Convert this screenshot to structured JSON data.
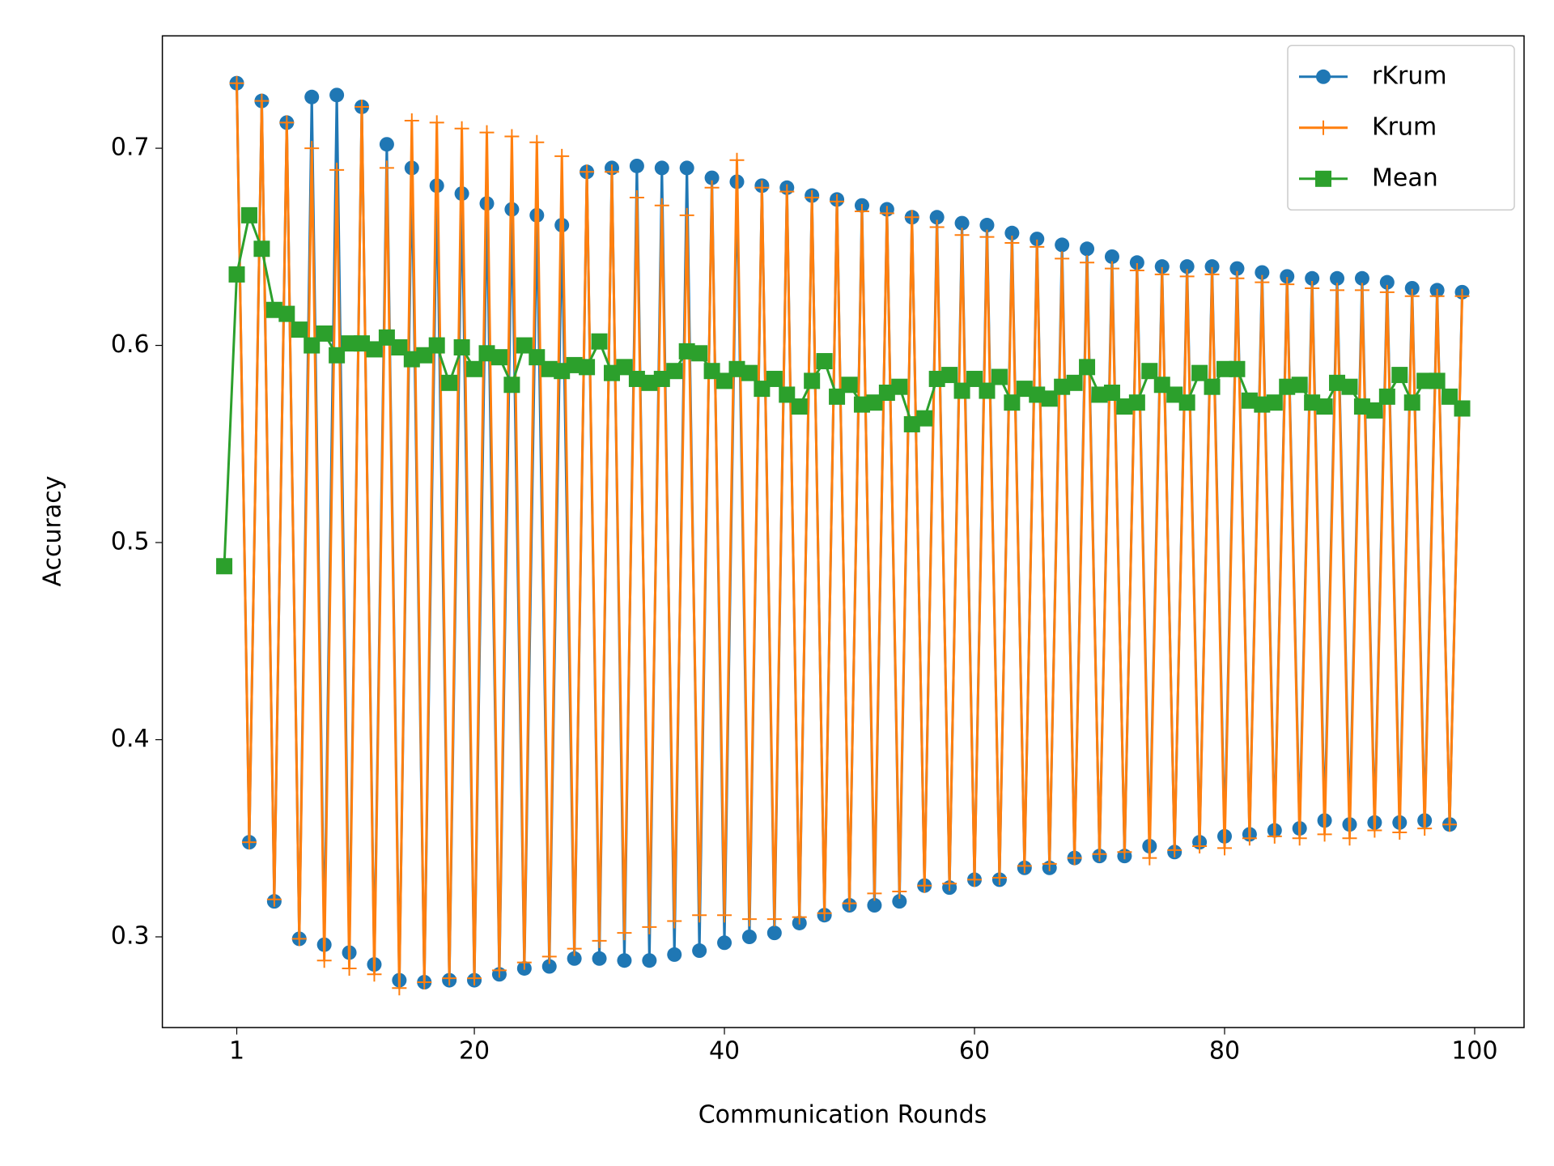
{
  "chart_data": {
    "type": "line",
    "xlabel": "Communication Rounds",
    "ylabel": "Accuracy",
    "x": [
      0,
      1,
      2,
      3,
      4,
      5,
      6,
      7,
      8,
      9,
      10,
      11,
      12,
      13,
      14,
      15,
      16,
      17,
      18,
      19,
      20,
      21,
      22,
      23,
      24,
      25,
      26,
      27,
      28,
      29,
      30,
      31,
      32,
      33,
      34,
      35,
      36,
      37,
      38,
      39,
      40,
      41,
      42,
      43,
      44,
      45,
      46,
      47,
      48,
      49,
      50,
      51,
      52,
      53,
      54,
      55,
      56,
      57,
      58,
      59,
      60,
      61,
      62,
      63,
      64,
      65,
      66,
      67,
      68,
      69,
      70,
      71,
      72,
      73,
      74,
      75,
      76,
      77,
      78,
      79,
      80,
      81,
      82,
      83,
      84,
      85,
      86,
      87,
      88,
      89,
      90,
      91,
      92,
      93,
      94,
      95,
      96,
      97,
      98,
      99
    ],
    "xlim": [
      -4.95,
      103.95
    ],
    "xticks": [
      1,
      20,
      40,
      60,
      80,
      100
    ],
    "ylim": [
      0.254,
      0.757
    ],
    "yticks": [
      0.3,
      0.4,
      0.5,
      0.6,
      0.7
    ],
    "legend": "upper right",
    "series": [
      {
        "name": "rKrum",
        "color": "#1f77b4",
        "marker": "circle",
        "values": [
          null,
          0.733,
          0.348,
          0.724,
          0.318,
          0.713,
          0.299,
          0.726,
          0.296,
          0.727,
          0.292,
          0.721,
          0.286,
          0.702,
          0.278,
          0.69,
          0.277,
          0.681,
          0.278,
          0.677,
          0.278,
          0.672,
          0.281,
          0.669,
          0.284,
          0.666,
          0.285,
          0.661,
          0.289,
          0.688,
          0.289,
          0.69,
          0.288,
          0.691,
          0.288,
          0.69,
          0.291,
          0.69,
          0.293,
          0.685,
          0.297,
          0.683,
          0.3,
          0.681,
          0.302,
          0.68,
          0.307,
          0.676,
          0.311,
          0.674,
          0.316,
          0.671,
          0.316,
          0.669,
          0.318,
          0.665,
          0.326,
          0.665,
          0.325,
          0.662,
          0.329,
          0.661,
          0.329,
          0.657,
          0.335,
          0.654,
          0.335,
          0.651,
          0.34,
          0.649,
          0.341,
          0.645,
          0.341,
          0.642,
          0.346,
          0.64,
          0.343,
          0.64,
          0.348,
          0.64,
          0.351,
          0.639,
          0.352,
          0.637,
          0.354,
          0.635,
          0.355,
          0.634,
          0.359,
          0.634,
          0.357,
          0.634,
          0.358,
          0.632,
          0.358,
          0.629,
          0.359,
          0.628,
          0.357,
          0.627
        ]
      },
      {
        "name": "Krum",
        "color": "#ff7f0e",
        "marker": "plus",
        "values": [
          null,
          0.733,
          0.348,
          0.724,
          0.319,
          0.713,
          0.299,
          0.7,
          0.288,
          0.689,
          0.284,
          0.721,
          0.281,
          0.69,
          0.274,
          0.714,
          0.277,
          0.713,
          0.279,
          0.71,
          0.279,
          0.708,
          0.283,
          0.706,
          0.287,
          0.703,
          0.29,
          0.696,
          0.294,
          0.688,
          0.298,
          0.688,
          0.302,
          0.675,
          0.305,
          0.671,
          0.308,
          0.666,
          0.311,
          0.68,
          0.311,
          0.694,
          0.309,
          0.68,
          0.309,
          0.678,
          0.31,
          0.675,
          0.312,
          0.673,
          0.317,
          0.668,
          0.322,
          0.667,
          0.323,
          0.665,
          0.326,
          0.66,
          0.327,
          0.656,
          0.329,
          0.655,
          0.33,
          0.652,
          0.336,
          0.65,
          0.337,
          0.644,
          0.34,
          0.642,
          0.342,
          0.639,
          0.343,
          0.638,
          0.34,
          0.636,
          0.344,
          0.635,
          0.346,
          0.636,
          0.345,
          0.634,
          0.35,
          0.632,
          0.351,
          0.631,
          0.35,
          0.629,
          0.352,
          0.628,
          0.35,
          0.628,
          0.354,
          0.627,
          0.353,
          0.625,
          0.355,
          0.625,
          0.357,
          0.625
        ]
      },
      {
        "name": "Mean",
        "color": "#2ca02c",
        "marker": "square",
        "values": [
          0.488,
          0.636,
          0.666,
          0.649,
          0.618,
          0.616,
          0.608,
          0.6,
          0.606,
          0.595,
          0.601,
          0.601,
          0.598,
          0.604,
          0.599,
          0.593,
          0.595,
          0.6,
          0.581,
          0.599,
          0.588,
          0.596,
          0.594,
          0.58,
          0.6,
          0.594,
          0.588,
          0.587,
          0.59,
          0.589,
          0.602,
          0.586,
          0.589,
          0.583,
          0.581,
          0.583,
          0.587,
          0.597,
          0.596,
          0.587,
          0.582,
          0.588,
          0.586,
          0.578,
          0.583,
          0.575,
          0.569,
          0.582,
          0.592,
          0.574,
          0.58,
          0.57,
          0.571,
          0.576,
          0.579,
          0.56,
          0.563,
          0.583,
          0.585,
          0.577,
          0.583,
          0.577,
          0.584,
          0.571,
          0.578,
          0.575,
          0.573,
          0.579,
          0.581,
          0.589,
          0.575,
          0.576,
          0.569,
          0.571,
          0.587,
          0.58,
          0.575,
          0.571,
          0.586,
          0.579,
          0.588,
          0.588,
          0.572,
          0.57,
          0.571,
          0.579,
          0.58,
          0.571,
          0.569,
          0.581,
          0.579,
          0.569,
          0.567,
          0.574,
          0.585,
          0.571,
          0.582,
          0.582,
          0.574,
          0.568
        ]
      }
    ]
  }
}
